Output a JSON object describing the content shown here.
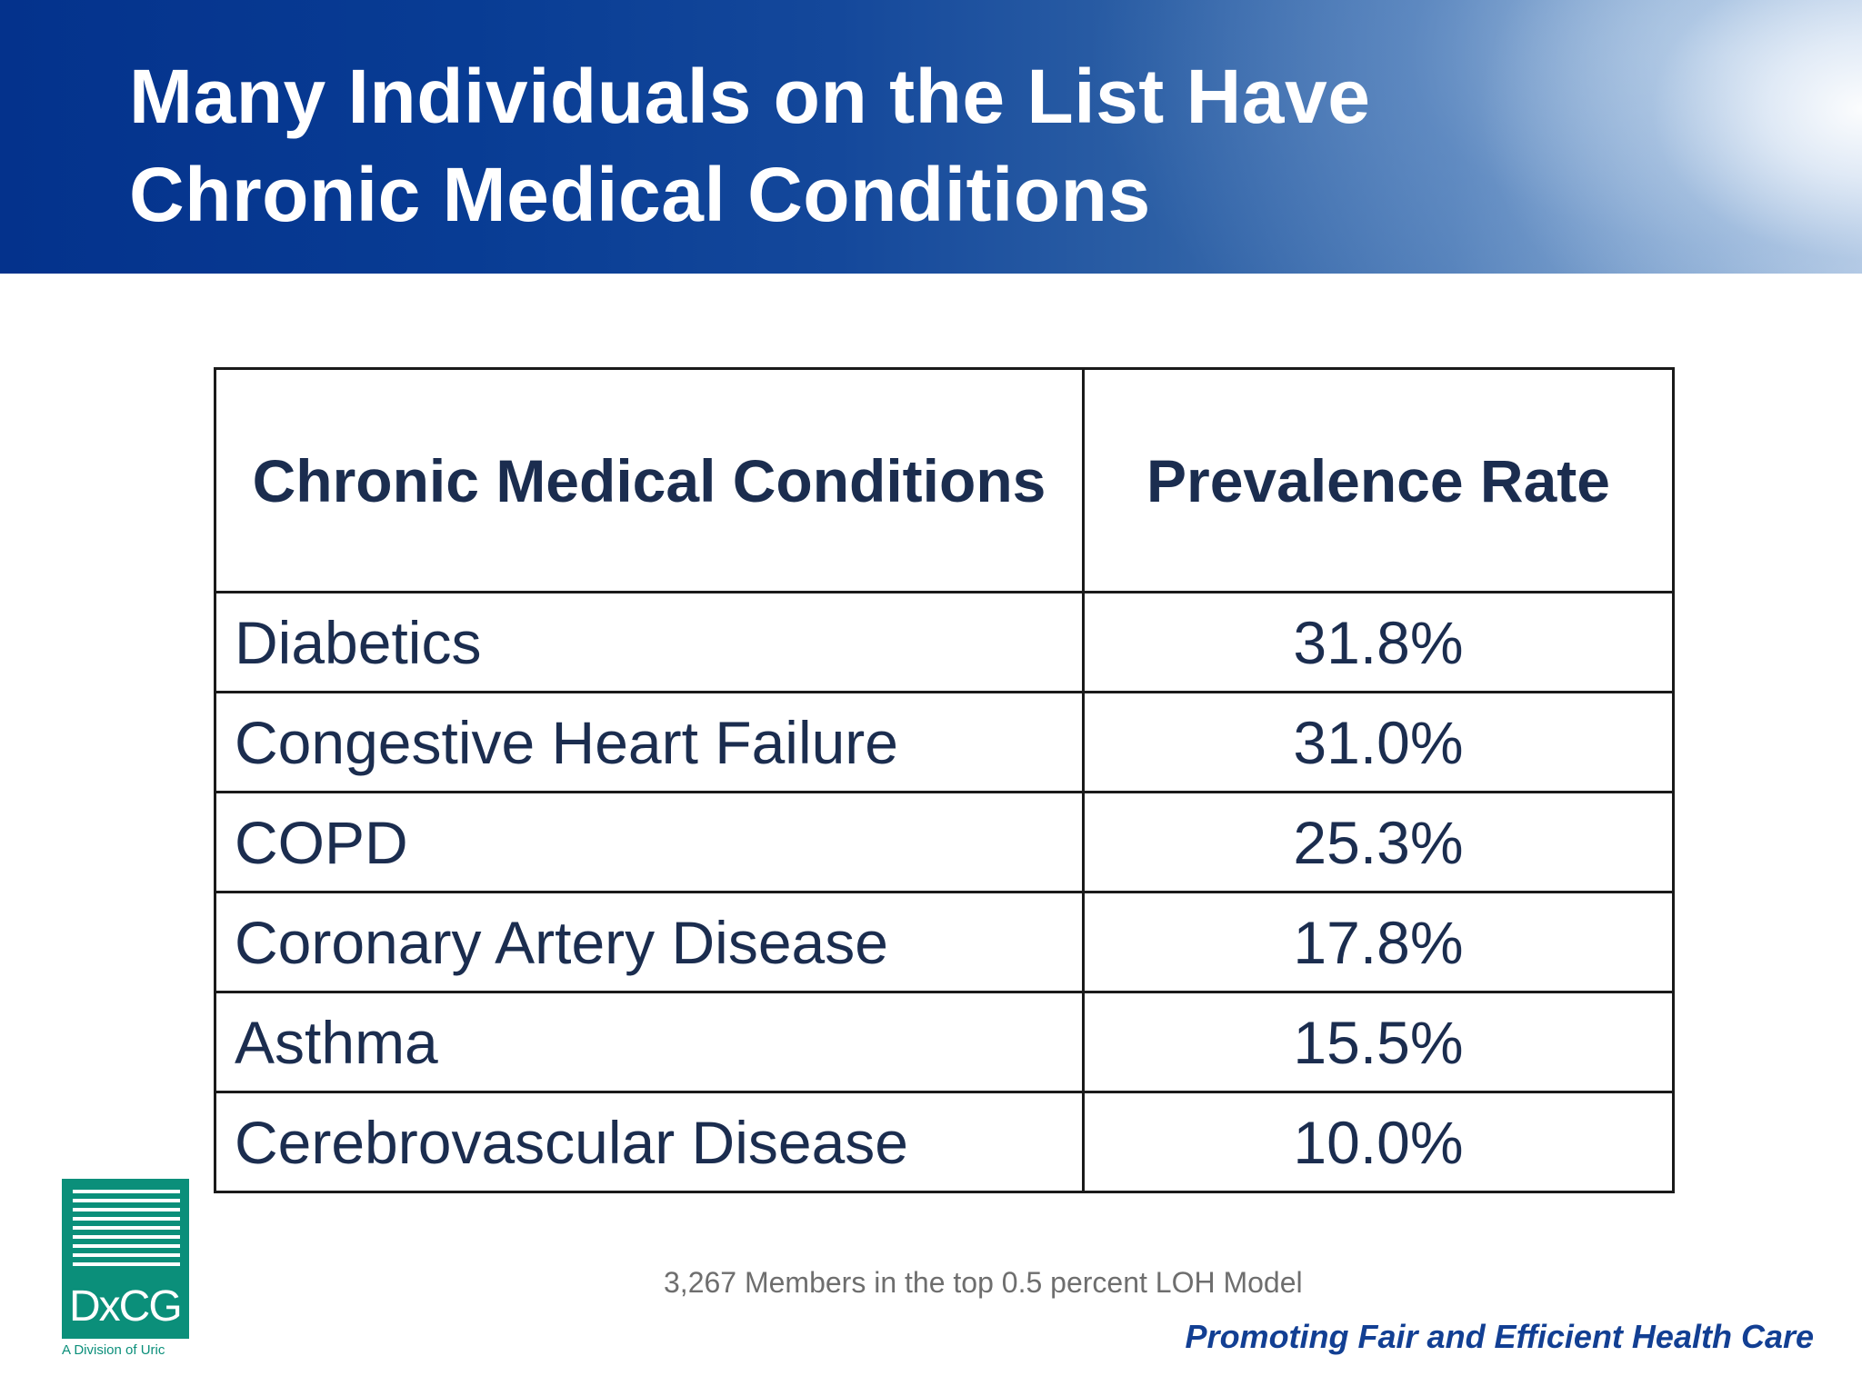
{
  "slide": {
    "title_line1": "Many Individuals on the List Have",
    "title_line2": "Chronic Medical Conditions"
  },
  "table": {
    "headers": [
      "Chronic Medical Conditions",
      "Prevalence Rate"
    ],
    "rows": [
      {
        "condition": "Diabetics",
        "rate": "31.8%"
      },
      {
        "condition": "Congestive Heart Failure",
        "rate": "31.0%"
      },
      {
        "condition": "COPD",
        "rate": "25.3%"
      },
      {
        "condition": "Coronary Artery Disease",
        "rate": "17.8%"
      },
      {
        "condition": "Asthma",
        "rate": "15.5%"
      },
      {
        "condition": "Cerebrovascular Disease",
        "rate": "10.0%"
      }
    ]
  },
  "footnote": "3,267 Members in the top 0.5 percent LOH Model",
  "tagline": "Promoting Fair and Efficient Health Care",
  "logo": {
    "text": "DxCG",
    "subtitle": "A Division of Uric",
    "color": "#0b8f7a"
  },
  "colors": {
    "banner_dark": "#04328c",
    "text_navy": "#1b2d4f",
    "tagline_blue": "#123f93"
  }
}
